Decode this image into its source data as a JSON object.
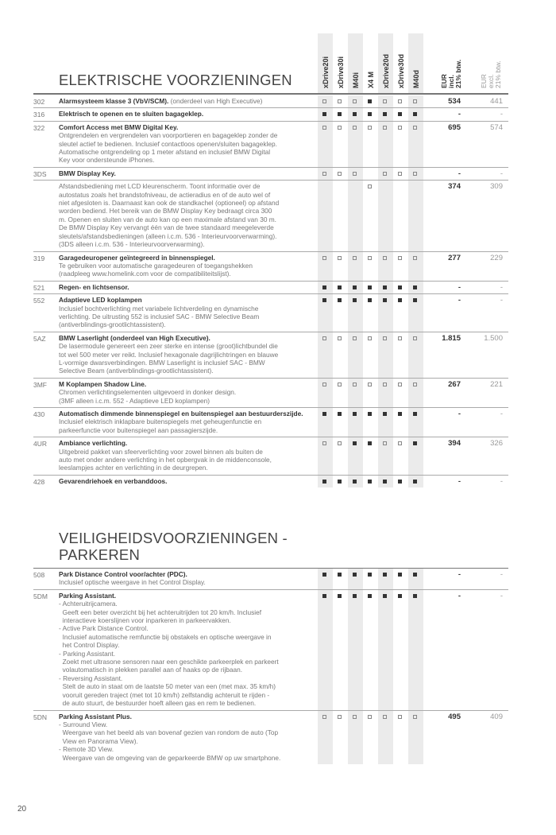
{
  "columns": [
    "xDrive20i",
    "xDrive30i",
    "M40i",
    "X4 M",
    "xDrive20d",
    "xDrive30d",
    "M40d"
  ],
  "price_incl_header": "EUR\nincl.\n21% btw.",
  "price_excl_header": "EUR\nexcl.\n21% btw.",
  "legend": {
    "f": "standard (filled square)",
    "o": "optional (open square)"
  },
  "sections": [
    {
      "title": [
        "ELEKTRISCHE VOORZIENINGEN"
      ],
      "rows": [
        {
          "code": "302",
          "title": "Alarmsysteem klasse 3 (VbV/SCM).",
          "title_suffix": " (onderdeel van High Executive)",
          "desc": [],
          "marks": [
            "o",
            "o",
            "o",
            "f",
            "o",
            "o",
            "o"
          ],
          "incl": "534",
          "excl": "441"
        },
        {
          "code": "316",
          "title": "Elektrisch te openen en te sluiten bagageklep.",
          "desc": [],
          "marks": [
            "f",
            "f",
            "f",
            "f",
            "f",
            "f",
            "f"
          ],
          "incl": "-",
          "excl": "-"
        },
        {
          "code": "322",
          "title": "Comfort Access met BMW Digital Key.",
          "desc": [
            "Ontgrendelen en vergrendelen van voorportieren en bagageklep zonder de",
            "sleutel actief te bedienen. Inclusief contactloos openen/sluiten bagageklep.",
            "Automatische ontgrendeling op 1 meter afstand en inclusief BMW Digital",
            "Key voor ondersteunde iPhones."
          ],
          "marks": [
            "o",
            "o",
            "o",
            "o",
            "o",
            "o",
            "o"
          ],
          "incl": "695",
          "excl": "574"
        },
        {
          "code": "3DS",
          "title": "BMW Display Key.",
          "desc": [],
          "marks": [
            "o",
            "o",
            "o",
            "",
            "o",
            "o",
            "o"
          ],
          "incl": "-",
          "excl": "-"
        },
        {
          "code": "",
          "title": "",
          "desc": [
            "Afstandsbediening met LCD kleurenscherm. Toont informatie over de",
            "autostatus zoals het brandstofniveau, de actieradius en of de auto wel of",
            "niet afgesloten is. Daarnaast kan ook de standkachel (optioneel) op afstand",
            "worden bediend. Het bereik van de BMW Display Key bedraagt circa 300",
            "m. Openen en sluiten van de auto kan op een maximale afstand van 30 m.",
            "De BMW Display Key vervangt één van de twee standaard meegeleverde",
            "sleutels/afstandsbedieningen (alleen i.c.m. 536 - Interieurvoorverwarming).",
            "(3DS alleen i.c.m. 536 - Interieurvoorverwarming)."
          ],
          "marks": [
            "",
            "",
            "",
            "o",
            "",
            "",
            ""
          ],
          "incl": "374",
          "excl": "309"
        },
        {
          "code": "319",
          "title": "Garagedeuropener geïntegreerd in binnenspiegel.",
          "desc": [
            "Te gebruiken voor automatische garagedeuren of toegangshekken",
            "(raadpleeg www.homelink.com voor de compatibiliteitslijst)."
          ],
          "marks": [
            "o",
            "o",
            "o",
            "o",
            "o",
            "o",
            "o"
          ],
          "incl": "277",
          "excl": "229"
        },
        {
          "code": "521",
          "title": "Regen- en lichtsensor.",
          "desc": [],
          "marks": [
            "f",
            "f",
            "f",
            "f",
            "f",
            "f",
            "f"
          ],
          "incl": "-",
          "excl": "-"
        },
        {
          "code": "552",
          "title": "Adaptieve LED koplampen",
          "desc": [
            "Inclusief bochtverlichting met variabele lichtverdeling en dynamische",
            "verlichting. De uitrusting 552 is inclusief SAC - BMW Selective Beam",
            "(antiverblindings-grootlichtassistent)."
          ],
          "marks": [
            "f",
            "f",
            "f",
            "f",
            "f",
            "f",
            "f"
          ],
          "incl": "-",
          "excl": "-"
        },
        {
          "code": "5AZ",
          "title": "BMW Laserlight (onderdeel van High Executive).",
          "desc": [
            "De lasermodule genereert een zeer sterke en intense (groot)lichtbundel die",
            "tot wel 500 meter ver reikt. Inclusief hexagonale dagrijlichtringen en blauwe",
            "L-vormige dwarsverbindingen. BMW Laserlight is inclusief SAC - BMW",
            "Selective Beam (antiverblindings-grootlichtassistent)."
          ],
          "marks": [
            "o",
            "o",
            "o",
            "o",
            "o",
            "o",
            "o"
          ],
          "incl": "1.815",
          "excl": "1.500"
        },
        {
          "code": "3MF",
          "title": "M Koplampen Shadow Line.",
          "desc": [
            "Chromen verlichtingselementen uitgevoerd in donker design.",
            "(3MF alleen i.c.m. 552 - Adaptieve LED koplampen)"
          ],
          "marks": [
            "o",
            "o",
            "o",
            "o",
            "o",
            "o",
            "o"
          ],
          "incl": "267",
          "excl": "221"
        },
        {
          "code": "430",
          "title": "Automatisch dimmende binnenspiegel en buitenspiegel aan bestuurderszijde.",
          "desc": [
            "Inclusief elektrisch inklapbare buitenspiegels met geheugenfunctie en",
            "parkeerfunctie voor buitenspiegel aan passagierszijde."
          ],
          "marks": [
            "f",
            "f",
            "f",
            "f",
            "f",
            "f",
            "f"
          ],
          "incl": "-",
          "excl": "-"
        },
        {
          "code": "4UR",
          "title": "Ambiance verlichting.",
          "desc": [
            "Uitgebreid pakket van sfeerverlichting voor zowel binnen als buiten de",
            "auto met onder andere verlichting in het opbergvak in de middenconsole,",
            "leeslampjes achter en verlichting in de deurgrepen."
          ],
          "marks": [
            "o",
            "o",
            "f",
            "f",
            "o",
            "o",
            "f"
          ],
          "incl": "394",
          "excl": "326"
        },
        {
          "code": "428",
          "title": "Gevarendriehoek en verbanddoos.",
          "desc": [],
          "marks": [
            "f",
            "f",
            "f",
            "f",
            "f",
            "f",
            "f"
          ],
          "incl": "-",
          "excl": "-"
        }
      ]
    },
    {
      "title": [
        "VEILIGHEIDSVOORZIENINGEN -",
        "PARKEREN"
      ],
      "rows": [
        {
          "code": "508",
          "title": "Park Distance Control voor/achter (PDC).",
          "desc": [
            "Inclusief optische weergave in het Control Display."
          ],
          "marks": [
            "f",
            "f",
            "f",
            "f",
            "f",
            "f",
            "f"
          ],
          "incl": "-",
          "excl": "-"
        },
        {
          "code": "5DM",
          "title": "Parking Assistant.",
          "desc": [
            "- Achteruitrijcamera.",
            "  Geeft een beter overzicht bij het achteruitrijden tot 20 km/h. Inclusief",
            "  interactieve koerslijnen voor inparkeren in parkeervakken.",
            "- Active Park Distance Control.",
            "  Inclusief automatische remfunctie bij obstakels en optische weergave in",
            "  het Control Display.",
            "- Parking Assistant.",
            "  Zoekt met ultrasone sensoren naar een geschikte parkeerplek en parkeert",
            "  volautomatisch in plekken parallel aan of haaks op de rijbaan.",
            "- Reversing Assistant.",
            "  Stelt de auto in staat om de laatste 50 meter van een (met max. 35 km/h)",
            "  vooruit gereden traject (met tot 10 km/h) zelfstandig achteruit te rijden -",
            "  de auto stuurt, de bestuurder hoeft alleen gas en rem te bedienen."
          ],
          "marks": [
            "f",
            "f",
            "f",
            "f",
            "f",
            "f",
            "f"
          ],
          "incl": "-",
          "excl": "-"
        },
        {
          "code": "5DN",
          "title": "Parking Assistant Plus.",
          "desc": [
            "- Surround View.",
            "  Weergave van het beeld als van bovenaf gezien van rondom de auto (Top",
            "  View en Panorama View).",
            "- Remote 3D View.",
            "  Weergave van de omgeving van de geparkeerde BMW op uw smartphone."
          ],
          "marks": [
            "o",
            "o",
            "o",
            "o",
            "o",
            "o",
            "o"
          ],
          "incl": "495",
          "excl": "409"
        }
      ]
    }
  ],
  "page_number": "20"
}
